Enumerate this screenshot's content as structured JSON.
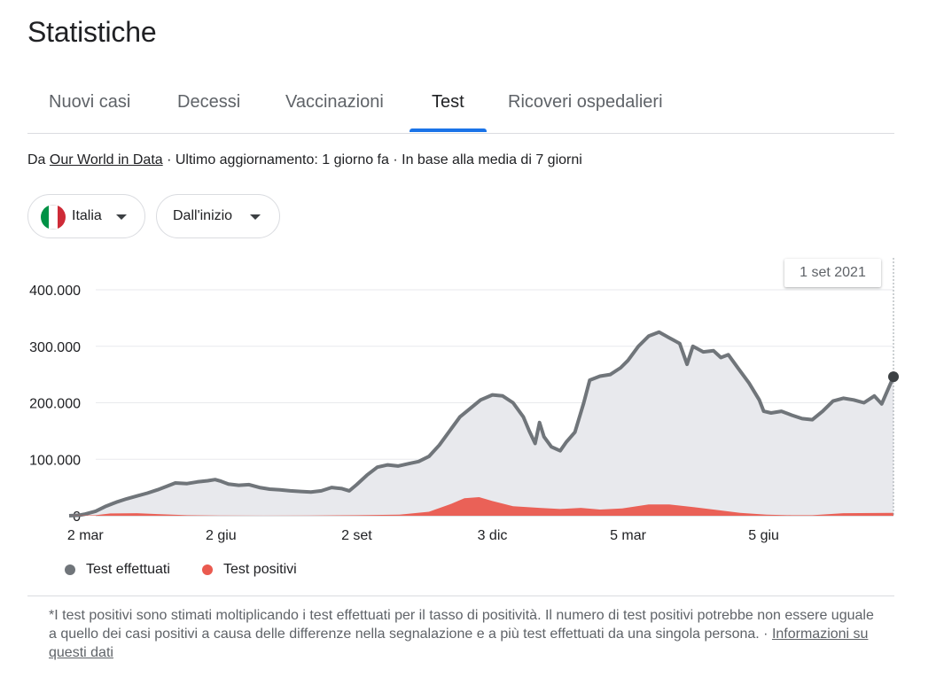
{
  "page": {
    "title": "Statistiche"
  },
  "tabs": [
    {
      "label": "Nuovi casi"
    },
    {
      "label": "Decessi"
    },
    {
      "label": "Vaccinazioni"
    },
    {
      "label": "Test",
      "active": true
    },
    {
      "label": "Ricoveri ospedalieri"
    }
  ],
  "source": {
    "prefix": "Da ",
    "link": "Our World in Data",
    "updated": " · Ultimo aggiornamento: 1 giorno fa · In base alla media di 7 giorni"
  },
  "filters": {
    "country": "Italia",
    "country_flag_colors": [
      "#009246",
      "#ffffff",
      "#ce2b37"
    ],
    "range": "Dall'inizio"
  },
  "tooltip": {
    "date": "1 set 2021"
  },
  "legend": [
    {
      "label": "Test effettuati",
      "color": "#70757a"
    },
    {
      "label": "Test positivi",
      "color": "#ea5a4f"
    }
  ],
  "footnote": {
    "text": "*I test positivi sono stimati moltiplicando i test effettuati per il tasso di positività. Il numero di test positivi potrebbe non essere uguale a quello dei casi positivi a causa delle differenze nella segnalazione e a più test effettuati da una singola persona.",
    "separator": " · ",
    "link": "Informazioni su questi dati"
  },
  "chart_data": {
    "type": "area",
    "x_tick_labels": [
      "2 mar",
      "2 giu",
      "2 set",
      "3 dic",
      "5 mar",
      "5 giu"
    ],
    "y_tick_labels": [
      "0",
      "100.000",
      "200.000",
      "300.000",
      "400.000"
    ],
    "ylim": [
      0,
      400000
    ],
    "grid": true,
    "x_range": [
      "2020-02-20",
      "2021-09-01"
    ],
    "series": [
      {
        "name": "Test effettuati",
        "color": "#70757a",
        "fill": "#e8e9ed",
        "points": [
          [
            "2020-02-20",
            0
          ],
          [
            "2020-02-27",
            1000
          ],
          [
            "2020-03-02",
            3000
          ],
          [
            "2020-03-09",
            8000
          ],
          [
            "2020-03-16",
            17000
          ],
          [
            "2020-03-23",
            24000
          ],
          [
            "2020-03-30",
            30000
          ],
          [
            "2020-04-06",
            35000
          ],
          [
            "2020-04-13",
            40000
          ],
          [
            "2020-04-20",
            46000
          ],
          [
            "2020-04-27",
            53000
          ],
          [
            "2020-05-02",
            58000
          ],
          [
            "2020-05-10",
            57000
          ],
          [
            "2020-05-17",
            60000
          ],
          [
            "2020-05-24",
            62000
          ],
          [
            "2020-05-29",
            64000
          ],
          [
            "2020-06-02",
            61000
          ],
          [
            "2020-06-07",
            56000
          ],
          [
            "2020-06-14",
            54000
          ],
          [
            "2020-06-21",
            55000
          ],
          [
            "2020-06-28",
            50000
          ],
          [
            "2020-07-05",
            47000
          ],
          [
            "2020-07-12",
            46000
          ],
          [
            "2020-07-19",
            44000
          ],
          [
            "2020-07-26",
            43000
          ],
          [
            "2020-08-02",
            42000
          ],
          [
            "2020-08-09",
            44000
          ],
          [
            "2020-08-16",
            50000
          ],
          [
            "2020-08-23",
            48000
          ],
          [
            "2020-08-28",
            44000
          ],
          [
            "2020-09-02",
            55000
          ],
          [
            "2020-09-09",
            72000
          ],
          [
            "2020-09-16",
            86000
          ],
          [
            "2020-09-23",
            90000
          ],
          [
            "2020-09-30",
            88000
          ],
          [
            "2020-10-07",
            92000
          ],
          [
            "2020-10-14",
            96000
          ],
          [
            "2020-10-21",
            105000
          ],
          [
            "2020-10-28",
            125000
          ],
          [
            "2020-11-04",
            150000
          ],
          [
            "2020-11-11",
            175000
          ],
          [
            "2020-11-18",
            190000
          ],
          [
            "2020-11-25",
            205000
          ],
          [
            "2020-12-03",
            214000
          ],
          [
            "2020-12-10",
            212000
          ],
          [
            "2020-12-17",
            200000
          ],
          [
            "2020-12-24",
            175000
          ],
          [
            "2020-12-28",
            150000
          ],
          [
            "2021-01-01",
            128000
          ],
          [
            "2021-01-04",
            165000
          ],
          [
            "2021-01-07",
            140000
          ],
          [
            "2021-01-12",
            122000
          ],
          [
            "2021-01-18",
            115000
          ],
          [
            "2021-01-22",
            130000
          ],
          [
            "2021-01-28",
            148000
          ],
          [
            "2021-02-03",
            200000
          ],
          [
            "2021-02-07",
            240000
          ],
          [
            "2021-02-14",
            247000
          ],
          [
            "2021-02-21",
            250000
          ],
          [
            "2021-02-28",
            262000
          ],
          [
            "2021-03-05",
            275000
          ],
          [
            "2021-03-12",
            300000
          ],
          [
            "2021-03-19",
            318000
          ],
          [
            "2021-03-26",
            325000
          ],
          [
            "2021-04-02",
            315000
          ],
          [
            "2021-04-09",
            305000
          ],
          [
            "2021-04-14",
            268000
          ],
          [
            "2021-04-18",
            300000
          ],
          [
            "2021-04-25",
            290000
          ],
          [
            "2021-05-02",
            292000
          ],
          [
            "2021-05-07",
            280000
          ],
          [
            "2021-05-12",
            285000
          ],
          [
            "2021-05-19",
            260000
          ],
          [
            "2021-05-26",
            235000
          ],
          [
            "2021-06-02",
            205000
          ],
          [
            "2021-06-05",
            185000
          ],
          [
            "2021-06-10",
            182000
          ],
          [
            "2021-06-17",
            185000
          ],
          [
            "2021-06-24",
            178000
          ],
          [
            "2021-07-01",
            172000
          ],
          [
            "2021-07-08",
            170000
          ],
          [
            "2021-07-15",
            185000
          ],
          [
            "2021-07-22",
            203000
          ],
          [
            "2021-07-29",
            208000
          ],
          [
            "2021-08-05",
            205000
          ],
          [
            "2021-08-12",
            200000
          ],
          [
            "2021-08-19",
            212000
          ],
          [
            "2021-08-24",
            198000
          ],
          [
            "2021-09-01",
            246000
          ]
        ]
      },
      {
        "name": "Test positivi",
        "color": "#ea5a4f",
        "fill": "#ea5a4f",
        "points": [
          [
            "2020-02-20",
            0
          ],
          [
            "2020-03-09",
            1000
          ],
          [
            "2020-03-19",
            4000
          ],
          [
            "2020-04-06",
            4500
          ],
          [
            "2020-04-20",
            3000
          ],
          [
            "2020-05-10",
            1000
          ],
          [
            "2020-06-01",
            400
          ],
          [
            "2020-07-01",
            200
          ],
          [
            "2020-08-01",
            300
          ],
          [
            "2020-09-02",
            1000
          ],
          [
            "2020-10-01",
            2000
          ],
          [
            "2020-10-21",
            7000
          ],
          [
            "2020-11-04",
            20000
          ],
          [
            "2020-11-14",
            31000
          ],
          [
            "2020-11-24",
            33000
          ],
          [
            "2020-12-03",
            26000
          ],
          [
            "2020-12-17",
            17000
          ],
          [
            "2021-01-04",
            14000
          ],
          [
            "2021-01-18",
            12000
          ],
          [
            "2021-02-01",
            14000
          ],
          [
            "2021-02-14",
            11000
          ],
          [
            "2021-03-01",
            13000
          ],
          [
            "2021-03-19",
            20000
          ],
          [
            "2021-04-02",
            20000
          ],
          [
            "2021-04-19",
            15000
          ],
          [
            "2021-05-05",
            10000
          ],
          [
            "2021-05-20",
            5000
          ],
          [
            "2021-06-07",
            2000
          ],
          [
            "2021-06-24",
            1000
          ],
          [
            "2021-07-08",
            1000
          ],
          [
            "2021-07-29",
            4500
          ],
          [
            "2021-09-01",
            5000
          ]
        ]
      }
    ]
  }
}
